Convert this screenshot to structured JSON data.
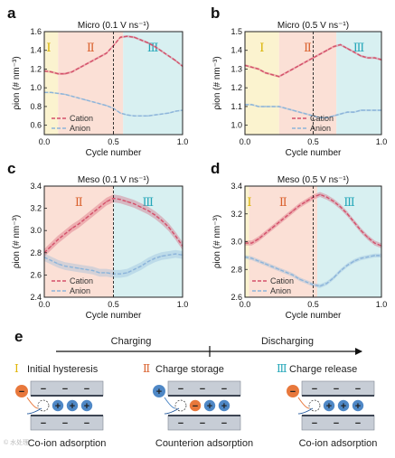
{
  "chart_data": [
    {
      "type": "line",
      "panel": "a",
      "title": "Micro (0.1 V ns⁻¹)",
      "xlabel": "Cycle number",
      "ylabel": "ρion (# nm⁻³)",
      "xlim": [
        0,
        1.0
      ],
      "ylim": [
        0.5,
        1.6
      ],
      "yticks": [
        0.6,
        0.8,
        1.0,
        1.2,
        1.4,
        1.6
      ],
      "xticks": [
        0.0,
        0.5,
        1.0
      ],
      "regions": [
        {
          "label": "I",
          "x0": 0.0,
          "x1": 0.1,
          "color": "#fbf3cf"
        },
        {
          "label": "II",
          "x0": 0.1,
          "x1": 0.57,
          "color": "#fbe0d6"
        },
        {
          "label": "III",
          "x0": 0.57,
          "x1": 1.0,
          "color": "#d8f0f1"
        }
      ],
      "vline": 0.5,
      "legend": {
        "position": "bottom-left",
        "entries": [
          "Cation",
          "Anion"
        ]
      },
      "series": [
        {
          "name": "Cation",
          "color": "#d4506a",
          "band": 0.012,
          "x": [
            0,
            0.05,
            0.1,
            0.15,
            0.2,
            0.25,
            0.3,
            0.35,
            0.4,
            0.45,
            0.5,
            0.55,
            0.6,
            0.65,
            0.7,
            0.75,
            0.8,
            0.85,
            0.9,
            0.95,
            1.0
          ],
          "y": [
            1.18,
            1.17,
            1.15,
            1.15,
            1.17,
            1.21,
            1.25,
            1.29,
            1.33,
            1.37,
            1.45,
            1.54,
            1.55,
            1.54,
            1.51,
            1.48,
            1.44,
            1.39,
            1.34,
            1.29,
            1.23
          ]
        },
        {
          "name": "Anion",
          "color": "#8cb4da",
          "band": 0.008,
          "x": [
            0,
            0.05,
            0.1,
            0.15,
            0.2,
            0.25,
            0.3,
            0.35,
            0.4,
            0.45,
            0.5,
            0.55,
            0.6,
            0.65,
            0.7,
            0.75,
            0.8,
            0.85,
            0.9,
            0.95,
            1.0
          ],
          "y": [
            0.95,
            0.95,
            0.94,
            0.93,
            0.91,
            0.89,
            0.87,
            0.85,
            0.83,
            0.81,
            0.78,
            0.73,
            0.71,
            0.7,
            0.7,
            0.7,
            0.71,
            0.72,
            0.73,
            0.75,
            0.76
          ]
        }
      ]
    },
    {
      "type": "line",
      "panel": "b",
      "title": "Micro (0.5 V ns⁻¹)",
      "xlabel": "Cycle number",
      "ylabel": "ρion (# nm⁻³)",
      "xlim": [
        0,
        1.0
      ],
      "ylim": [
        0.95,
        1.5
      ],
      "yticks": [
        1.0,
        1.1,
        1.2,
        1.3,
        1.4,
        1.5
      ],
      "xticks": [
        0.0,
        0.5,
        1.0
      ],
      "regions": [
        {
          "label": "I",
          "x0": 0.0,
          "x1": 0.25,
          "color": "#fbf3cf"
        },
        {
          "label": "II",
          "x0": 0.25,
          "x1": 0.67,
          "color": "#fbe0d6"
        },
        {
          "label": "III",
          "x0": 0.67,
          "x1": 1.0,
          "color": "#d8f0f1"
        }
      ],
      "vline": 0.5,
      "legend": {
        "position": "bottom-center",
        "entries": [
          "Cation",
          "Anion"
        ]
      },
      "series": [
        {
          "name": "Cation",
          "color": "#d4506a",
          "band": 0.006,
          "x": [
            0,
            0.05,
            0.1,
            0.15,
            0.2,
            0.25,
            0.3,
            0.35,
            0.4,
            0.45,
            0.5,
            0.55,
            0.6,
            0.65,
            0.7,
            0.75,
            0.8,
            0.85,
            0.9,
            0.95,
            1.0
          ],
          "y": [
            1.32,
            1.31,
            1.3,
            1.28,
            1.27,
            1.26,
            1.28,
            1.3,
            1.32,
            1.34,
            1.36,
            1.38,
            1.4,
            1.42,
            1.43,
            1.41,
            1.39,
            1.37,
            1.36,
            1.36,
            1.35
          ]
        },
        {
          "name": "Anion",
          "color": "#8cb4da",
          "band": 0.005,
          "x": [
            0,
            0.05,
            0.1,
            0.15,
            0.2,
            0.25,
            0.3,
            0.35,
            0.4,
            0.45,
            0.5,
            0.55,
            0.6,
            0.65,
            0.7,
            0.75,
            0.8,
            0.85,
            0.9,
            0.95,
            1.0
          ],
          "y": [
            1.11,
            1.11,
            1.1,
            1.1,
            1.1,
            1.1,
            1.09,
            1.08,
            1.07,
            1.06,
            1.05,
            1.04,
            1.04,
            1.05,
            1.06,
            1.07,
            1.07,
            1.08,
            1.08,
            1.08,
            1.08
          ]
        }
      ]
    },
    {
      "type": "line",
      "panel": "c",
      "title": "Meso (0.1 V ns⁻¹)",
      "xlabel": "Cycle number",
      "ylabel": "ρion (# nm⁻³)",
      "xlim": [
        0,
        1.0
      ],
      "ylim": [
        2.4,
        3.4
      ],
      "yticks": [
        2.4,
        2.6,
        2.8,
        3.0,
        3.2,
        3.4
      ],
      "xticks": [
        0.0,
        0.5,
        1.0
      ],
      "regions": [
        {
          "label": "II",
          "x0": 0.0,
          "x1": 0.5,
          "color": "#fbe0d6"
        },
        {
          "label": "III",
          "x0": 0.5,
          "x1": 1.0,
          "color": "#d8f0f1"
        }
      ],
      "vline": 0.5,
      "legend": {
        "position": "bottom-left",
        "entries": [
          "Cation",
          "Anion"
        ]
      },
      "series": [
        {
          "name": "Cation",
          "color": "#d4506a",
          "band": 0.035,
          "x": [
            0,
            0.05,
            0.1,
            0.15,
            0.2,
            0.25,
            0.3,
            0.35,
            0.4,
            0.45,
            0.5,
            0.55,
            0.6,
            0.65,
            0.7,
            0.75,
            0.8,
            0.85,
            0.9,
            0.95,
            1.0
          ],
          "y": [
            2.8,
            2.86,
            2.92,
            2.97,
            3.02,
            3.06,
            3.11,
            3.16,
            3.21,
            3.26,
            3.29,
            3.28,
            3.26,
            3.24,
            3.21,
            3.18,
            3.14,
            3.09,
            3.03,
            2.95,
            2.86
          ]
        },
        {
          "name": "Anion",
          "color": "#8cb4da",
          "band": 0.035,
          "x": [
            0,
            0.05,
            0.1,
            0.15,
            0.2,
            0.25,
            0.3,
            0.35,
            0.4,
            0.45,
            0.5,
            0.55,
            0.6,
            0.65,
            0.7,
            0.75,
            0.8,
            0.85,
            0.9,
            0.95,
            1.0
          ],
          "y": [
            2.76,
            2.73,
            2.7,
            2.68,
            2.67,
            2.66,
            2.65,
            2.64,
            2.62,
            2.62,
            2.61,
            2.61,
            2.62,
            2.65,
            2.68,
            2.72,
            2.75,
            2.77,
            2.78,
            2.79,
            2.78
          ]
        }
      ]
    },
    {
      "type": "line",
      "panel": "d",
      "title": "Meso (0.5 V ns⁻¹)",
      "xlabel": "Cycle number",
      "ylabel": "ρion (# nm⁻³)",
      "xlim": [
        0,
        1.0
      ],
      "ylim": [
        2.6,
        3.4
      ],
      "yticks": [
        2.6,
        2.8,
        3.0,
        3.2,
        3.4
      ],
      "xticks": [
        0.0,
        0.5,
        1.0
      ],
      "regions": [
        {
          "label": "I",
          "x0": 0.0,
          "x1": 0.03,
          "color": "#fbf3cf"
        },
        {
          "label": "II",
          "x0": 0.03,
          "x1": 0.53,
          "color": "#fbe0d6"
        },
        {
          "label": "III",
          "x0": 0.53,
          "x1": 1.0,
          "color": "#d8f0f1"
        }
      ],
      "vline": 0.5,
      "legend": {
        "position": "bottom-left",
        "entries": [
          "Cation",
          "Anion"
        ]
      },
      "series": [
        {
          "name": "Cation",
          "color": "#d4506a",
          "band": 0.018,
          "x": [
            0,
            0.05,
            0.1,
            0.15,
            0.2,
            0.25,
            0.3,
            0.35,
            0.4,
            0.45,
            0.5,
            0.55,
            0.6,
            0.65,
            0.7,
            0.75,
            0.8,
            0.85,
            0.9,
            0.95,
            1.0
          ],
          "y": [
            2.99,
            2.99,
            3.02,
            3.06,
            3.1,
            3.14,
            3.18,
            3.22,
            3.26,
            3.29,
            3.32,
            3.34,
            3.32,
            3.29,
            3.25,
            3.2,
            3.14,
            3.08,
            3.03,
            2.99,
            2.97
          ]
        },
        {
          "name": "Anion",
          "color": "#8cb4da",
          "band": 0.014,
          "x": [
            0,
            0.05,
            0.1,
            0.15,
            0.2,
            0.25,
            0.3,
            0.35,
            0.4,
            0.45,
            0.5,
            0.55,
            0.6,
            0.65,
            0.7,
            0.75,
            0.8,
            0.85,
            0.9,
            0.95,
            1.0
          ],
          "y": [
            2.89,
            2.88,
            2.86,
            2.84,
            2.82,
            2.8,
            2.78,
            2.76,
            2.73,
            2.71,
            2.69,
            2.68,
            2.7,
            2.74,
            2.79,
            2.83,
            2.86,
            2.88,
            2.89,
            2.9,
            2.9
          ]
        }
      ]
    }
  ],
  "schematic": {
    "panel_label": "e",
    "charging_label": "Charging",
    "discharging_label": "Discharging",
    "phases": [
      {
        "numeral": "I",
        "title": "Initial hysteresis",
        "caption": "Co-ion adsorption",
        "numeral_color": "#e0b400",
        "ion_color": "#e8783c",
        "ion_sign": "−",
        "wall_top_sign": "−",
        "wall_bottom_sign": "+",
        "pore_ions": [
          "+",
          "+",
          "+"
        ]
      },
      {
        "numeral": "II",
        "title": "Charge storage",
        "caption": "Counterion adsorption",
        "numeral_color": "#d9602c",
        "ion_color": "#4f88c6",
        "ion_sign": "+",
        "wall_top_sign": "−",
        "wall_bottom_sign": "+",
        "pore_ions": [
          "−",
          "+",
          "+"
        ]
      },
      {
        "numeral": "III",
        "title": "Charge release",
        "caption": "Co-ion adsorption",
        "numeral_color": "#23a6b8",
        "ion_color": "#e8783c",
        "ion_sign": "−",
        "wall_top_sign": "−",
        "wall_bottom_sign": "+",
        "pore_ions": [
          "+",
          "+",
          "+"
        ]
      }
    ]
  },
  "watermark": "© 水处理",
  "colors": {
    "cation": "#d4506a",
    "anion": "#8cb4da",
    "region_I": "#fbf3cf",
    "region_II": "#fbe0d6",
    "region_III": "#d8f0f1"
  }
}
